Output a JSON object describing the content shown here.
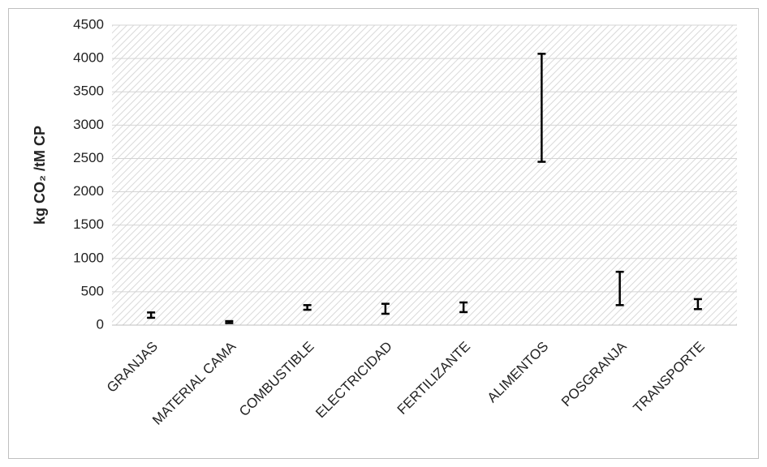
{
  "chart_data": {
    "type": "range",
    "y_label": "kg CO₂ /tM CP",
    "categories": [
      "GRANJAS",
      "MATERIAL CAMA",
      "COMBUSTIBLE",
      "ELECTRICIDAD",
      "FERTILIZANTE",
      "ALIMENTOS",
      "POSGRANJA",
      "TRANSPORTE"
    ],
    "lows": [
      110,
      30,
      230,
      170,
      195,
      2450,
      300,
      240
    ],
    "highs": [
      190,
      60,
      300,
      320,
      340,
      4070,
      800,
      390
    ],
    "color": "#000000",
    "ylim": [
      0,
      4500
    ],
    "yticks": [
      0,
      500,
      1000,
      1500,
      2000,
      2500,
      3000,
      3500,
      4000,
      4500
    ],
    "grid": true
  }
}
